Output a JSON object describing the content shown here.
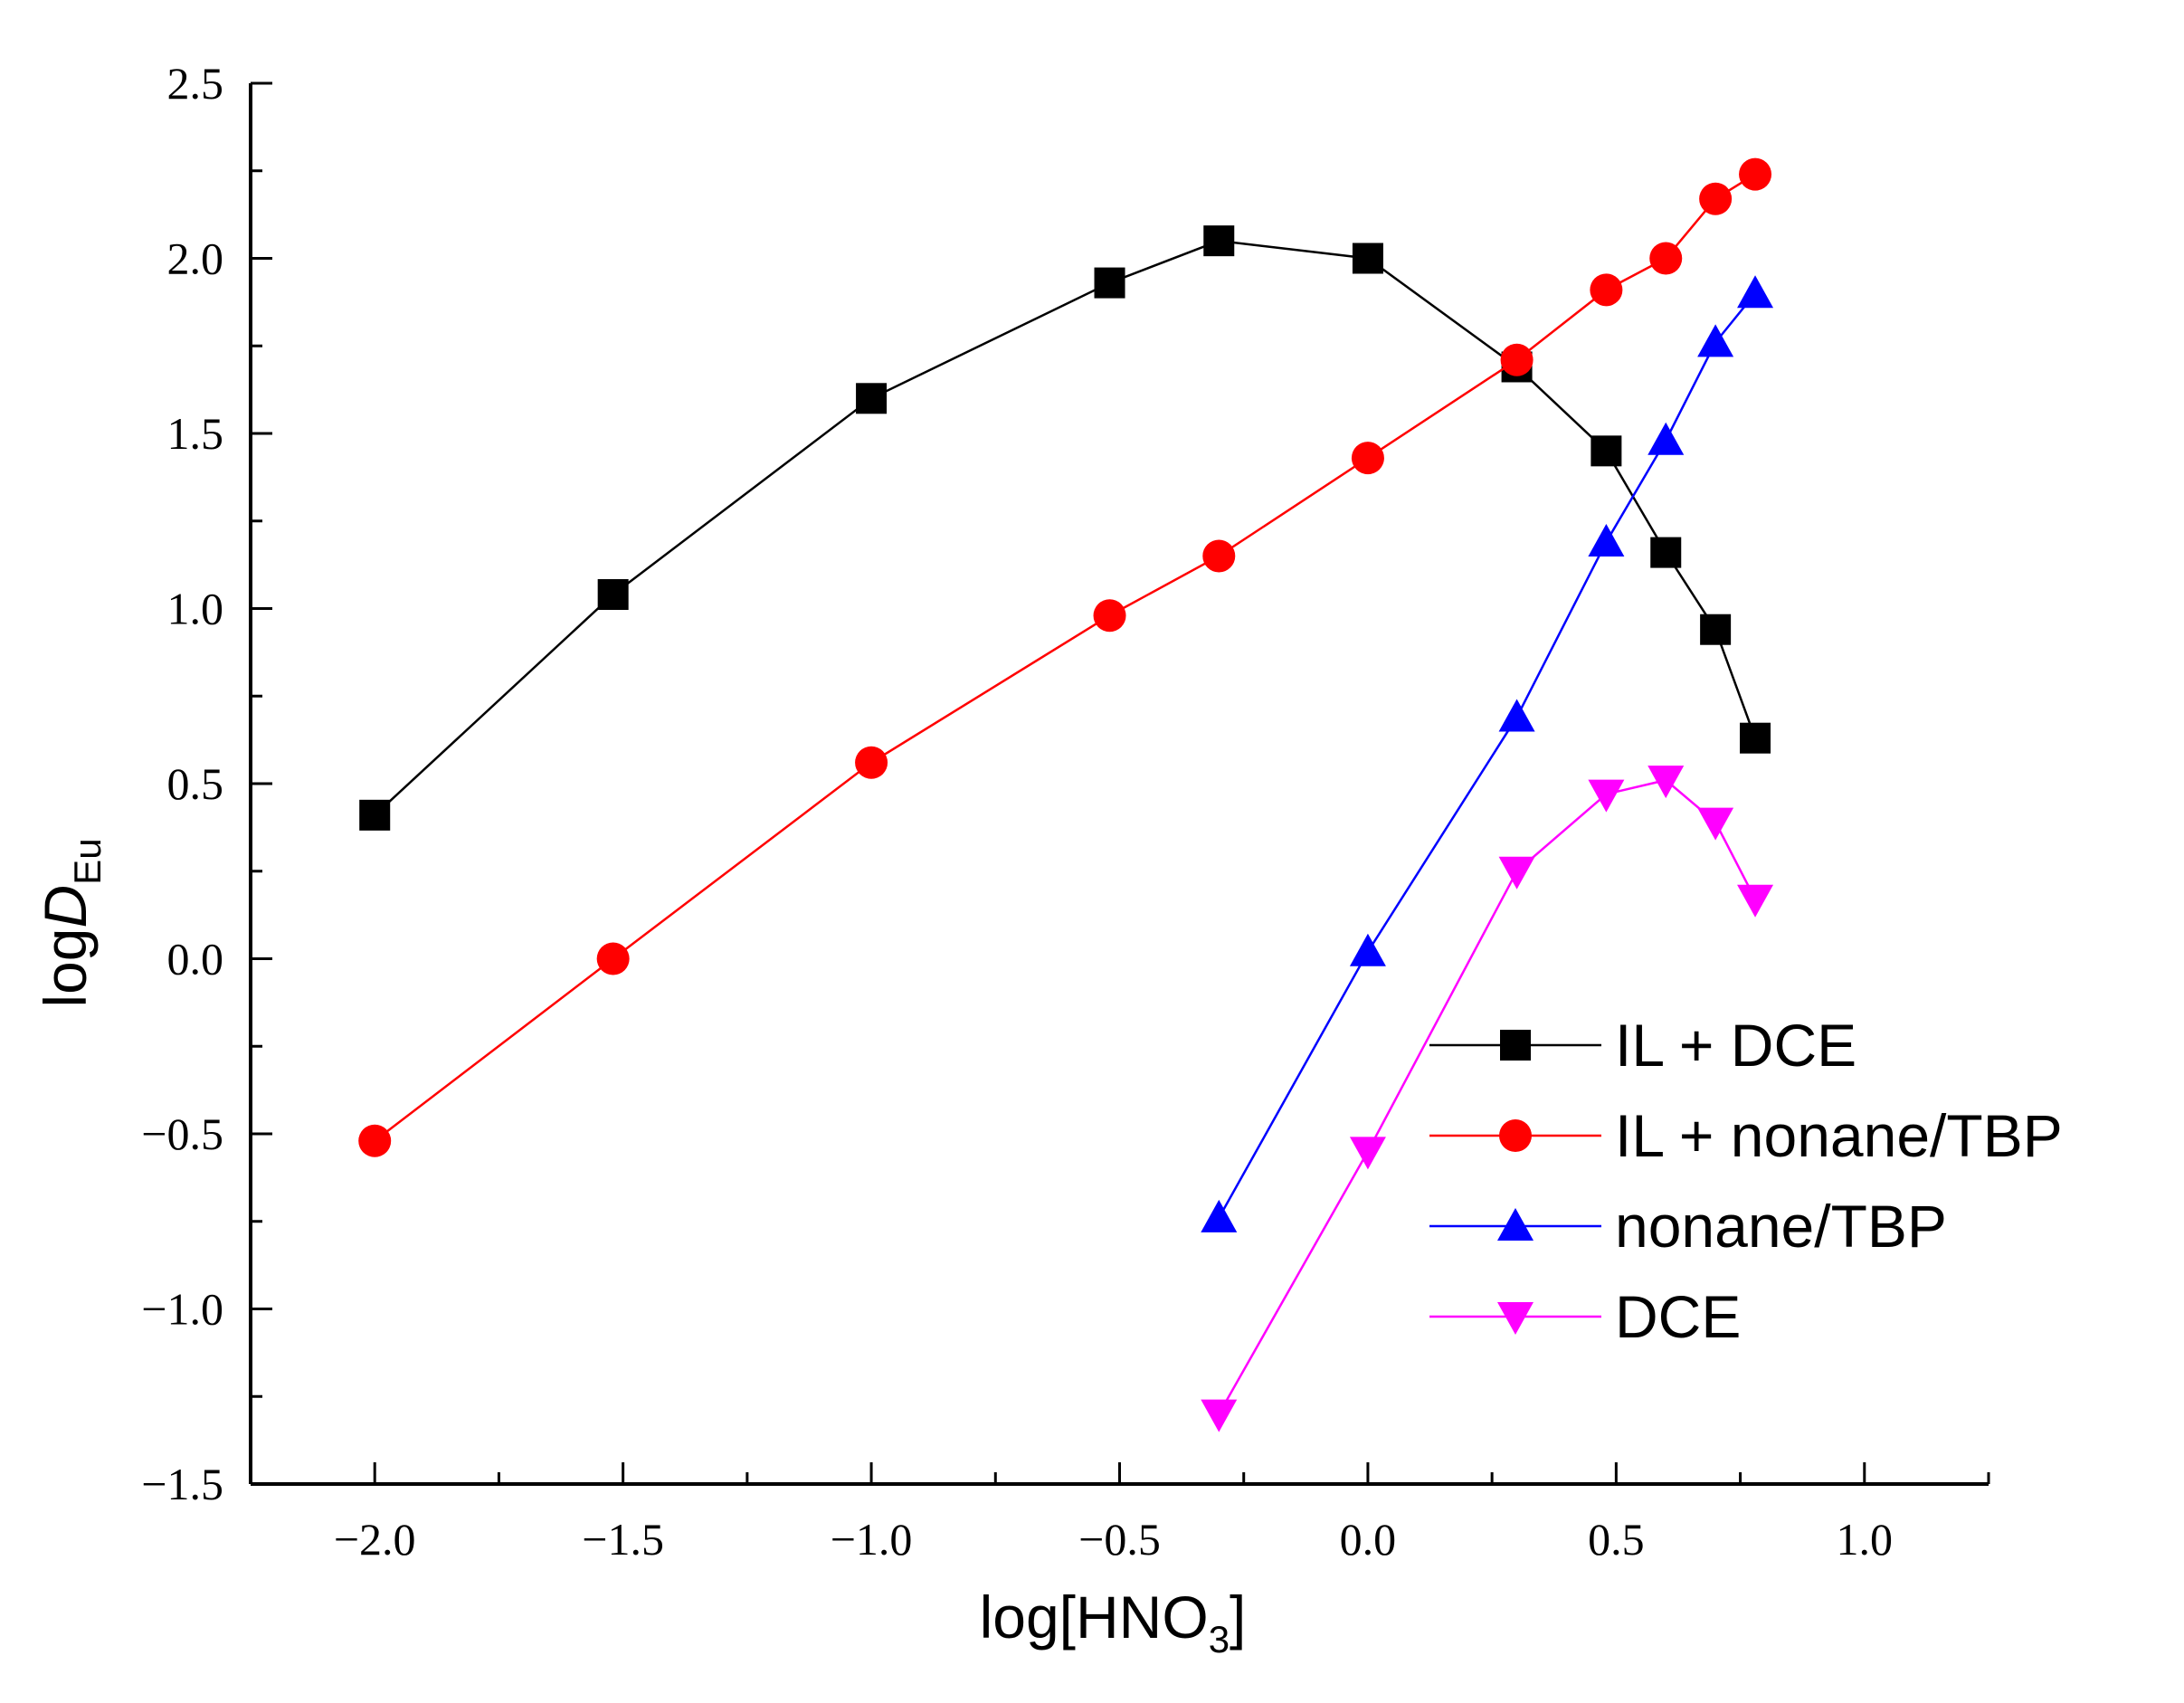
{
  "chart_data": {
    "type": "line",
    "xlabel": "log[HNO3]",
    "xlabel_parts": {
      "base": "log[HNO",
      "sub": "3",
      "tail": "]"
    },
    "ylabel": "logDEu",
    "ylabel_parts": {
      "pre": "log",
      "italic": "D",
      "sub": "Eu"
    },
    "xlim": [
      -2.25,
      1.25
    ],
    "ylim": [
      -1.5,
      2.5
    ],
    "x_ticks": [
      {
        "value": -2.0,
        "label": "−2.0"
      },
      {
        "value": -1.5,
        "label": "−1.5"
      },
      {
        "value": -1.0,
        "label": "−1.0"
      },
      {
        "value": -0.5,
        "label": "−0.5"
      },
      {
        "value": 0.0,
        "label": "0.0"
      },
      {
        "value": 0.5,
        "label": "0.5"
      },
      {
        "value": 1.0,
        "label": "1.0"
      }
    ],
    "y_ticks": [
      {
        "value": 2.5,
        "label": "2.5"
      },
      {
        "value": 2.0,
        "label": "2.0"
      },
      {
        "value": 1.5,
        "label": "1.5"
      },
      {
        "value": 1.0,
        "label": "1.0"
      },
      {
        "value": 0.5,
        "label": "0.5"
      },
      {
        "value": 0.0,
        "label": "0.0"
      },
      {
        "value": -0.5,
        "label": "−0.5"
      },
      {
        "value": -1.0,
        "label": "−1.0"
      },
      {
        "value": -1.5,
        "label": "−1.5"
      }
    ],
    "grid": false,
    "legend_position": "lower-right",
    "series": [
      {
        "name": "IL + DCE",
        "color": "#000000",
        "marker": "square",
        "points": [
          [
            -2.0,
            0.41
          ],
          [
            -1.52,
            1.04
          ],
          [
            -1.0,
            1.6
          ],
          [
            -0.52,
            1.93
          ],
          [
            -0.3,
            2.05
          ],
          [
            0.0,
            2.0
          ],
          [
            0.3,
            1.69
          ],
          [
            0.48,
            1.45
          ],
          [
            0.6,
            1.16
          ],
          [
            0.7,
            0.94
          ],
          [
            0.78,
            0.63
          ]
        ]
      },
      {
        "name": "IL + nonane/TBP",
        "color": "#ff0000",
        "marker": "circle",
        "points": [
          [
            -2.0,
            -0.52
          ],
          [
            -1.52,
            0.0
          ],
          [
            -1.0,
            0.56
          ],
          [
            -0.52,
            0.98
          ],
          [
            -0.3,
            1.15
          ],
          [
            0.0,
            1.43
          ],
          [
            0.3,
            1.71
          ],
          [
            0.48,
            1.91
          ],
          [
            0.6,
            2.0
          ],
          [
            0.7,
            2.17
          ],
          [
            0.78,
            2.24
          ]
        ]
      },
      {
        "name": "nonane/TBP",
        "color": "#0000ff",
        "marker": "triangle-up",
        "points": [
          [
            -0.3,
            -0.74
          ],
          [
            0.0,
            0.02
          ],
          [
            0.3,
            0.69
          ],
          [
            0.48,
            1.19
          ],
          [
            0.6,
            1.48
          ],
          [
            0.7,
            1.76
          ],
          [
            0.78,
            1.9
          ]
        ]
      },
      {
        "name": "DCE",
        "color": "#ff00ff",
        "marker": "triangle-down",
        "points": [
          [
            -0.3,
            -1.3
          ],
          [
            0.0,
            -0.55
          ],
          [
            0.3,
            0.25
          ],
          [
            0.48,
            0.47
          ],
          [
            0.6,
            0.51
          ],
          [
            0.7,
            0.39
          ],
          [
            0.78,
            0.17
          ]
        ]
      }
    ]
  }
}
